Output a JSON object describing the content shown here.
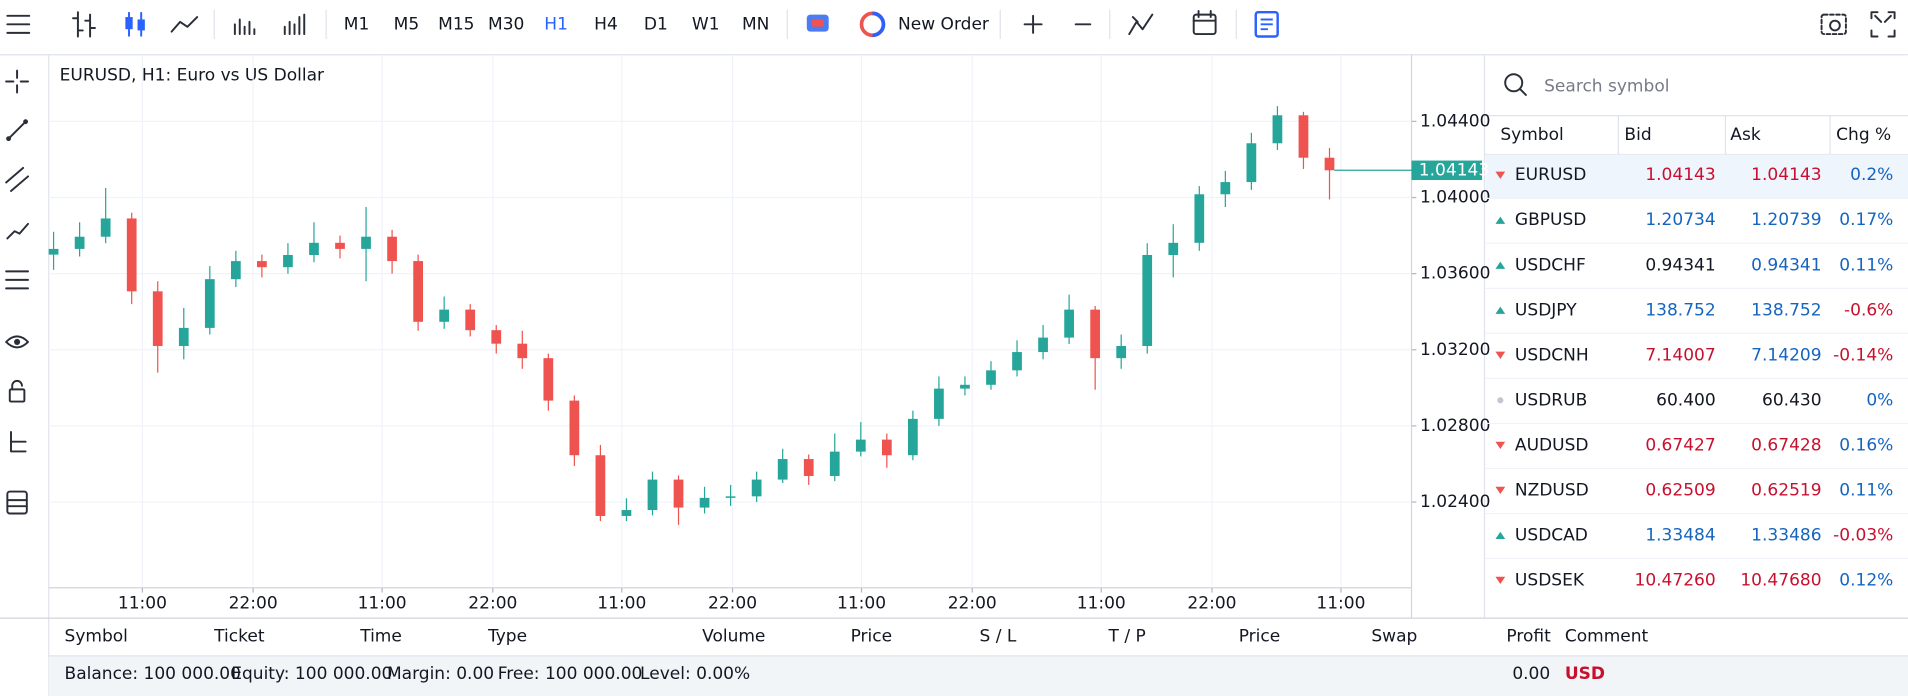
{
  "toolbar": {
    "timeframes": [
      "M1",
      "M5",
      "M15",
      "M30",
      "H1",
      "H4",
      "D1",
      "W1",
      "MN"
    ],
    "active_timeframe": "H1",
    "new_order": "New Order"
  },
  "chart_data": {
    "type": "candlestick",
    "title": "EURUSD, H1: Euro vs US Dollar",
    "up_color": "#26a69a",
    "down_color": "#ef5350",
    "ylim": [
      1.0195,
      1.0475
    ],
    "yticks": [
      {
        "value": 1.024,
        "label": "1.02400"
      },
      {
        "value": 1.028,
        "label": "1.02800"
      },
      {
        "value": 1.032,
        "label": "1.03200"
      },
      {
        "value": 1.036,
        "label": "1.03600"
      },
      {
        "value": 1.04,
        "label": "1.04000"
      },
      {
        "value": 1.044,
        "label": "1.04400"
      }
    ],
    "x_labels": [
      "11:00",
      "22:00",
      "11:00",
      "22:00",
      "11:00",
      "22:00",
      "11:00",
      "22:00",
      "11:00",
      "22:00",
      "11:00"
    ],
    "grid": true,
    "current_price": 1.04143,
    "candles": {
      "open": [
        1.037,
        1.0373,
        1.03794,
        1.0389,
        1.03507,
        1.0322,
        1.03315,
        1.03571,
        1.03666,
        1.03634,
        1.03698,
        1.03762,
        1.0373,
        1.03794,
        1.03666,
        1.03347,
        1.03411,
        1.03303,
        1.03232,
        1.03156,
        1.02933,
        1.02646,
        1.02327,
        1.02358,
        1.02518,
        1.02371,
        1.02422,
        1.0243,
        1.02518,
        1.02626,
        1.02537,
        1.02665,
        1.02728,
        1.02646,
        1.02837,
        1.02996,
        1.03016,
        1.03092,
        1.03188,
        1.03264,
        1.03411,
        1.03156,
        1.0322,
        1.03698,
        1.03762,
        1.04017,
        1.04081,
        1.04285,
        1.04432,
        1.04209
      ],
      "high": [
        1.0382,
        1.0387,
        1.0405,
        1.0392,
        1.0356,
        1.0342,
        1.0364,
        1.0372,
        1.037,
        1.0376,
        1.0387,
        1.038,
        1.0395,
        1.0383,
        1.037,
        1.0348,
        1.0344,
        1.0333,
        1.033,
        1.0318,
        1.0296,
        1.027,
        1.0242,
        1.0256,
        1.0254,
        1.0248,
        1.0249,
        1.0256,
        1.0268,
        1.0265,
        1.0276,
        1.0282,
        1.0276,
        1.0288,
        1.0306,
        1.0306,
        1.0314,
        1.0325,
        1.0333,
        1.0349,
        1.0343,
        1.0328,
        1.0376,
        1.0386,
        1.0406,
        1.0414,
        1.0434,
        1.0448,
        1.0445,
        1.0426
      ],
      "low": [
        1.0362,
        1.0369,
        1.0376,
        1.0344,
        1.0308,
        1.0315,
        1.0328,
        1.0353,
        1.0358,
        1.036,
        1.0366,
        1.0368,
        1.0356,
        1.036,
        1.033,
        1.0331,
        1.0327,
        1.0318,
        1.031,
        1.0288,
        1.0259,
        1.023,
        1.023,
        1.0233,
        1.0228,
        1.0234,
        1.0238,
        1.024,
        1.025,
        1.0249,
        1.0251,
        1.0264,
        1.0258,
        1.0262,
        1.028,
        1.0296,
        1.0299,
        1.0306,
        1.0315,
        1.0323,
        1.0299,
        1.031,
        1.0318,
        1.0358,
        1.0372,
        1.0395,
        1.0404,
        1.0425,
        1.0415,
        1.0399
      ],
      "close": [
        1.0373,
        1.03794,
        1.0389,
        1.03507,
        1.0322,
        1.03315,
        1.03571,
        1.03666,
        1.03634,
        1.03698,
        1.03762,
        1.0373,
        1.03794,
        1.03666,
        1.03347,
        1.03411,
        1.03303,
        1.03232,
        1.03156,
        1.02933,
        1.02646,
        1.02327,
        1.02358,
        1.02518,
        1.02371,
        1.02422,
        1.0243,
        1.02518,
        1.02626,
        1.02537,
        1.02665,
        1.02728,
        1.02646,
        1.02837,
        1.02996,
        1.03016,
        1.03092,
        1.03188,
        1.03264,
        1.03411,
        1.03156,
        1.0322,
        1.03698,
        1.03762,
        1.04017,
        1.04081,
        1.04285,
        1.04432,
        1.04209,
        1.04143
      ]
    }
  },
  "watchlist": {
    "search_placeholder": "Search symbol",
    "columns": [
      "Symbol",
      "Bid",
      "Ask",
      "Chg %"
    ],
    "rows": [
      {
        "symbol": "EURUSD",
        "bid": "1.04143",
        "ask": "1.04143",
        "chg": "0.2%",
        "arrow": "down",
        "bid_color": "#c8102e",
        "ask_color": "#c8102e",
        "chg_color": "#1565c0"
      },
      {
        "symbol": "GBPUSD",
        "bid": "1.20734",
        "ask": "1.20739",
        "chg": "0.17%",
        "arrow": "up",
        "bid_color": "#1565c0",
        "ask_color": "#1565c0",
        "chg_color": "#1565c0"
      },
      {
        "symbol": "USDCHF",
        "bid": "0.94341",
        "ask": "0.94341",
        "chg": "0.11%",
        "arrow": "up",
        "bid_color": "#131722",
        "ask_color": "#1565c0",
        "chg_color": "#1565c0"
      },
      {
        "symbol": "USDJPY",
        "bid": "138.752",
        "ask": "138.752",
        "chg": "-0.6%",
        "arrow": "up",
        "bid_color": "#1565c0",
        "ask_color": "#1565c0",
        "chg_color": "#c8102e"
      },
      {
        "symbol": "USDCNH",
        "bid": "7.14007",
        "ask": "7.14209",
        "chg": "-0.14%",
        "arrow": "down",
        "bid_color": "#c8102e",
        "ask_color": "#1565c0",
        "chg_color": "#c8102e"
      },
      {
        "symbol": "USDRUB",
        "bid": "60.400",
        "ask": "60.430",
        "chg": "0%",
        "arrow": "flat",
        "bid_color": "#131722",
        "ask_color": "#131722",
        "chg_color": "#1565c0"
      },
      {
        "symbol": "AUDUSD",
        "bid": "0.67427",
        "ask": "0.67428",
        "chg": "0.16%",
        "arrow": "down",
        "bid_color": "#c8102e",
        "ask_color": "#c8102e",
        "chg_color": "#1565c0"
      },
      {
        "symbol": "NZDUSD",
        "bid": "0.62509",
        "ask": "0.62519",
        "chg": "0.11%",
        "arrow": "down",
        "bid_color": "#c8102e",
        "ask_color": "#c8102e",
        "chg_color": "#1565c0"
      },
      {
        "symbol": "USDCAD",
        "bid": "1.33484",
        "ask": "1.33486",
        "chg": "-0.03%",
        "arrow": "up",
        "bid_color": "#1565c0",
        "ask_color": "#1565c0",
        "chg_color": "#c8102e"
      },
      {
        "symbol": "USDSEK",
        "bid": "10.47260",
        "ask": "10.47680",
        "chg": "0.12%",
        "arrow": "down",
        "bid_color": "#c8102e",
        "ask_color": "#c8102e",
        "chg_color": "#1565c0"
      }
    ]
  },
  "positions": {
    "columns": [
      "Symbol",
      "Ticket",
      "Time",
      "Type",
      "Volume",
      "Price",
      "S / L",
      "T / P",
      "Price",
      "Swap",
      "Profit",
      "Comment"
    ]
  },
  "status": {
    "balance": "Balance: 100 000.00",
    "equity": "Equity: 100 000.00",
    "margin": "Margin: 0.00",
    "free": "Free: 100 000.00",
    "level": "Level: 0.00%",
    "profit": "0.00",
    "currency": "USD"
  }
}
